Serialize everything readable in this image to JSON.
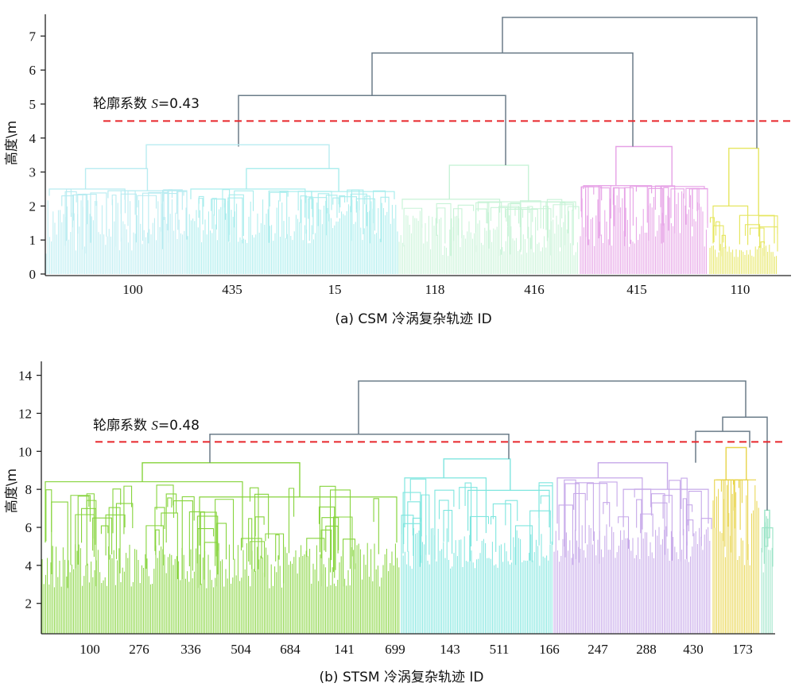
{
  "chart_data": [
    {
      "type": "dendrogram",
      "ylabel": "高度\\m",
      "ylim": [
        0,
        7.5
      ],
      "yticks": [
        0,
        1,
        2,
        3,
        4,
        5,
        6,
        7
      ],
      "xlabel": "(a) CSM 冷涡复杂轨迹 ID",
      "x_tick_labels": [
        "100",
        "435",
        "15",
        "118",
        "416",
        "415",
        "110"
      ],
      "cut_line": {
        "height": 4.5,
        "label_prefix": "轮廓系数 ",
        "label_var": "S",
        "label_value": "=0.43",
        "color": "#e8262b"
      },
      "clusters": [
        {
          "color": "#b9ecf1",
          "top": 3.1,
          "sub": 2.5
        },
        {
          "color": "#a9eded",
          "top": 3.8,
          "sub": 2.5
        },
        {
          "color": "#c8f3d7",
          "top": 3.2,
          "sub": 2.2
        },
        {
          "color": "#e6a1e6",
          "top": 3.75,
          "sub": 2.6
        },
        {
          "color": "#e6e660",
          "top": 3.7,
          "sub": 2.0
        }
      ],
      "merges": [
        {
          "height": 5.25,
          "note": "cluster-1 + cluster-3"
        },
        {
          "height": 6.5,
          "note": "+ cluster-4"
        },
        {
          "height": 7.55,
          "note": "+ cluster-5"
        }
      ],
      "link_color": "#6b7c89"
    },
    {
      "type": "dendrogram",
      "ylabel": "高度\\m",
      "ylim": [
        0.4,
        14.4
      ],
      "yticks": [
        2,
        4,
        6,
        8,
        10,
        12,
        14
      ],
      "xlabel": "(b) STSM 冷涡复杂轨迹 ID",
      "x_tick_labels": [
        "100",
        "276",
        "336",
        "504",
        "684",
        "141",
        "699",
        "143",
        "511",
        "166",
        "247",
        "288",
        "430",
        "173"
      ],
      "cut_line": {
        "height": 10.5,
        "label_prefix": "轮廓系数 ",
        "label_var": "S",
        "label_value": "=0.48",
        "color": "#e8262b"
      },
      "clusters": [
        {
          "color": "#86d43c",
          "top": 9.4,
          "sub": 8.4
        },
        {
          "color": "#7fe6df",
          "top": 9.6,
          "sub": 8.6
        },
        {
          "color": "#c6a8e9",
          "top": 9.4,
          "sub": 8.6
        },
        {
          "color": "#e8d44a",
          "top": 10.2,
          "sub": 8.5
        },
        {
          "color": "#9de5c8",
          "top": 6.9,
          "sub": 5.0
        }
      ],
      "merges": [
        {
          "height": 10.9,
          "note": "cluster-1 + cluster-2"
        },
        {
          "height": 11.05,
          "note": "cluster-3 + cluster-4"
        },
        {
          "height": 11.8,
          "note": "+ cluster-5"
        },
        {
          "height": 13.7,
          "note": "all"
        }
      ],
      "link_color": "#6b7c89"
    }
  ]
}
